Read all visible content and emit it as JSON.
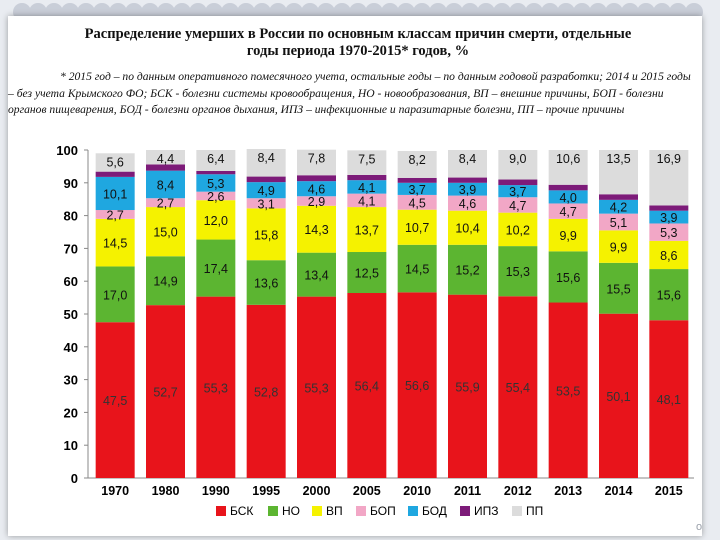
{
  "slide": {
    "title_line1": "Распределение умерших в России по основным классам причин смерти, отдельные",
    "title_line2": "годы периода 1970-2015* годов, %",
    "footnote": "* 2015 год – по данным оперативного помесячного учета, остальные годы – по данным годовой разработки; 2014 и 2015 годы – без учета Крымского ФО; БСК - болезни системы кровообращения, НО - новообразования, ВП – внешние причины, БОП - болезни органов пищеварения, БОД - болезни органов дыхания, ИПЗ – инфекционные и паразитарные болезни, ПП – прочие причины",
    "corner_text": "om"
  },
  "chart_data": {
    "type": "bar",
    "stacked": true,
    "categories": [
      "1970",
      "1980",
      "1990",
      "1995",
      "2000",
      "2005",
      "2010",
      "2011",
      "2012",
      "2013",
      "2014",
      "2015"
    ],
    "series": [
      {
        "name": "БСК",
        "color": "#e8141b",
        "label_color": "#333333",
        "values": [
          47.5,
          52.7,
          55.3,
          52.8,
          55.3,
          56.4,
          56.6,
          55.9,
          55.4,
          53.5,
          50.1,
          48.1
        ]
      },
      {
        "name": "НО",
        "color": "#5cb531",
        "label_color": "#111111",
        "values": [
          17.0,
          14.9,
          17.4,
          13.6,
          13.4,
          12.5,
          14.5,
          15.2,
          15.3,
          15.6,
          15.5,
          15.6
        ]
      },
      {
        "name": "ВП",
        "color": "#f5f200",
        "label_color": "#111111",
        "values": [
          14.5,
          15.0,
          12.0,
          15.8,
          14.3,
          13.7,
          10.7,
          10.4,
          10.2,
          9.9,
          9.9,
          8.6
        ]
      },
      {
        "name": "БОП",
        "color": "#f2a7c6",
        "label_color": "#111111",
        "values": [
          2.7,
          2.7,
          2.6,
          3.1,
          2.9,
          4.1,
          4.5,
          4.6,
          4.7,
          4.7,
          5.1,
          5.3
        ]
      },
      {
        "name": "БОД",
        "color": "#1fa7e0",
        "label_color": "#111111",
        "values": [
          10.1,
          8.4,
          5.3,
          4.9,
          4.6,
          4.1,
          3.7,
          3.9,
          3.7,
          4.0,
          4.2,
          3.9
        ]
      },
      {
        "name": "ИПЗ",
        "color": "#7d1b79",
        "label_color": "#ffffff",
        "values": [
          1.6,
          1.9,
          1.0,
          1.7,
          1.8,
          1.6,
          1.5,
          1.6,
          1.7,
          1.7,
          1.7,
          1.6
        ]
      },
      {
        "name": "ПП",
        "color": "#dcdcdc",
        "label_color": "#111111",
        "values": [
          5.6,
          4.4,
          6.4,
          8.4,
          7.8,
          7.5,
          8.2,
          8.4,
          9.0,
          10.6,
          13.5,
          16.9
        ]
      }
    ],
    "data_labels": [
      [
        "47,5",
        "52,7",
        "55,3",
        "52,8",
        "55,3",
        "56,4",
        "56,6",
        "55,9",
        "55,4",
        "53,5",
        "50,1",
        "48,1"
      ],
      [
        "17,0",
        "14,9",
        "17,4",
        "13,6",
        "13,4",
        "12,5",
        "14,5",
        "15,2",
        "15,3",
        "15,6",
        "15,5",
        "15,6"
      ],
      [
        "14,5",
        "15,0",
        "12,0",
        "15,8",
        "14,3",
        "13,7",
        "10,7",
        "10,4",
        "10,2",
        "9,9",
        "9,9",
        "8,6"
      ],
      [
        "2,7",
        "2,7",
        "2,6",
        "3,1",
        "2,9",
        "4,1",
        "4,5",
        "4,6",
        "4,7",
        "4,7",
        "5,1",
        "5,3"
      ],
      [
        "10,1",
        "8,4",
        "5,3",
        "4,9",
        "4,6",
        "4,1",
        "3,7",
        "3,9",
        "3,7",
        "4,0",
        "4,2",
        "3,9"
      ],
      [
        "",
        "",
        "",
        "",
        "",
        "",
        "",
        "",
        "",
        "",
        "",
        ""
      ],
      [
        "5,6",
        "4,4",
        "6,4",
        "8,4",
        "7,8",
        "7,5",
        "8,2",
        "8,4",
        "9,0",
        "10,6",
        "13,5",
        "16,9"
      ]
    ],
    "ylim": [
      0,
      100
    ],
    "yticks": [
      0,
      10,
      20,
      30,
      40,
      50,
      60,
      70,
      80,
      90,
      100
    ],
    "grid": false,
    "legend_position": "bottom"
  }
}
